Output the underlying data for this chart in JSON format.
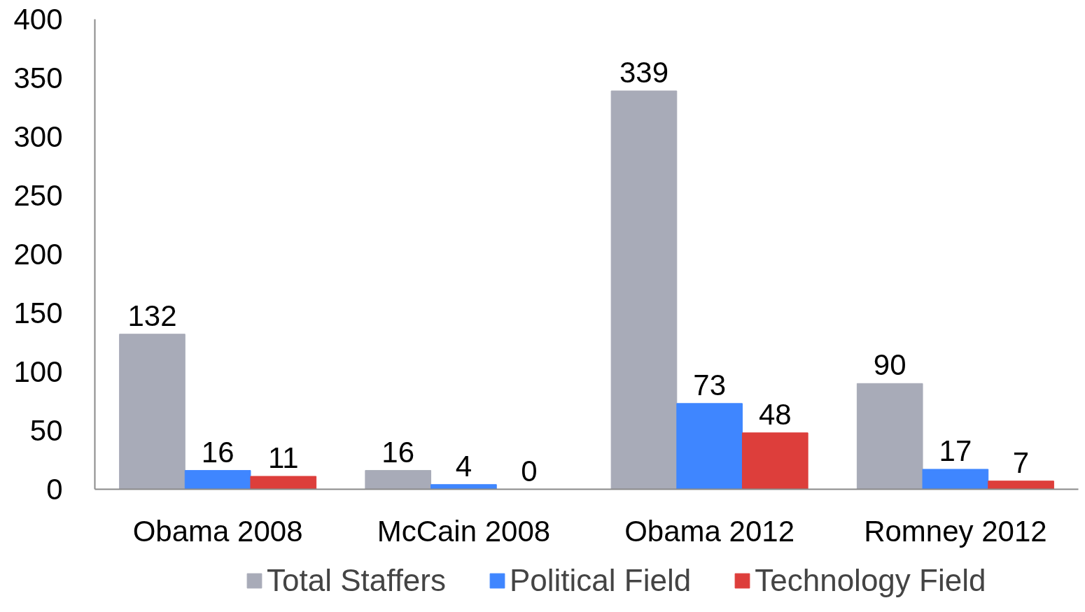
{
  "chart_data": {
    "type": "bar",
    "categories": [
      "Obama 2008",
      "McCain 2008",
      "Obama 2012",
      "Romney 2012"
    ],
    "series": [
      {
        "name": "Total Staffers",
        "color": "#a8abb8",
        "values": [
          132,
          16,
          339,
          90
        ]
      },
      {
        "name": "Political Field",
        "color": "#3f86ff",
        "values": [
          16,
          4,
          73,
          17
        ]
      },
      {
        "name": "Technology Field",
        "color": "#dd3e3b",
        "values": [
          11,
          0,
          48,
          7
        ]
      }
    ],
    "ylim": [
      0,
      400
    ],
    "yticks": [
      0,
      50,
      100,
      150,
      200,
      250,
      300,
      350,
      400
    ],
    "grid": false,
    "legend": "bottom",
    "data_labels": true
  }
}
